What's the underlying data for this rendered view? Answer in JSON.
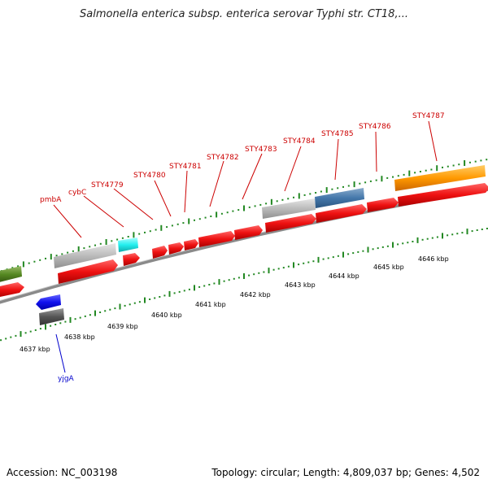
{
  "title": "Salmonella enterica subsp. enterica serovar Typhi str. CT18,...",
  "accession": "Accession: NC_003198",
  "topology": "Topology: circular; Length: 4,809,037 bp; Genes: 4,502",
  "ruler_labels": [
    "4637 kbp",
    "4638 kbp",
    "4639 kbp",
    "4640 kbp",
    "4641 kbp",
    "4642 kbp",
    "4643 kbp",
    "4644 kbp",
    "4645 kbp",
    "4646 kbp"
  ],
  "gene_labels": [
    "pmbA",
    "cybC",
    "STY4779",
    "STY4780",
    "STY4781",
    "STY4782",
    "STY4783",
    "STY4784",
    "STY4785",
    "STY4786",
    "STY4787",
    "yjgA"
  ],
  "colors": {
    "gene_red": "#ee1111",
    "gene_grey": "#bbbbbb",
    "gene_cyan": "#22eeee",
    "gene_blue": "#1111ee",
    "gene_orange": "#ff9900",
    "gene_steel": "#4477aa",
    "gene_olive": "#558822",
    "gene_dark": "#555555",
    "tick_green": "#228822",
    "backbone": "#888888",
    "label_red": "#cc0000",
    "label_blue": "#0000cc"
  }
}
